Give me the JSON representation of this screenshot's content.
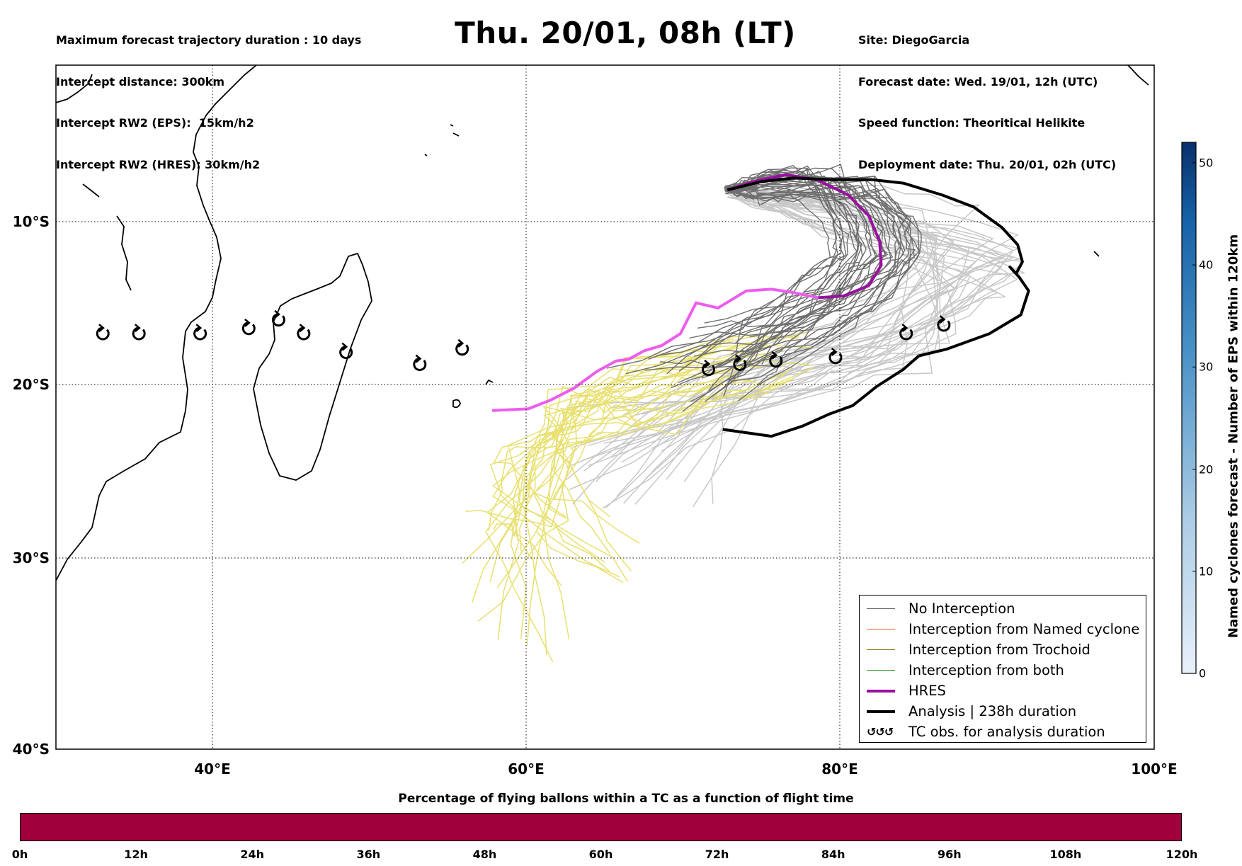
{
  "header": {
    "left_lines": [
      "Maximum forecast trajectory duration : 10 days",
      "Intercept distance: 300km",
      "Intercept RW2 (EPS):  15km/h2",
      "Intercept RW2 (HRES): 30km/h2"
    ],
    "title": "Thu. 20/01, 08h (LT)",
    "right_lines": [
      "Site: DiegoGarcia",
      "Forecast date: Wed. 19/01, 12h (UTC)",
      "Speed function: Theoritical Helikite",
      "Deployment date: Thu. 20/01, 02h (UTC)"
    ]
  },
  "map": {
    "lon_range": [
      30,
      100
    ],
    "lat_range": [
      0,
      -40
    ],
    "lat_labels": [
      "10°S",
      "20°S",
      "30°S",
      "40°S"
    ],
    "lon_labels": [
      "40°E",
      "60°E",
      "80°E",
      "100°E"
    ],
    "gridlines": true,
    "colors": {
      "no_interception": "#6e6e6e",
      "light_member": "#c8c8c8",
      "yellow_member": "#e8e070",
      "hres_forecast": "#9a0fa0",
      "hres_analysis_segment": "#ee5cee",
      "analysis": "#000000"
    },
    "tc_obs_points": [
      {
        "lon": 33,
        "lat": -15.7
      },
      {
        "lon": 35.3,
        "lat": -15.7
      },
      {
        "lon": 39.2,
        "lat": -15.7
      },
      {
        "lon": 42.3,
        "lat": -15.4
      },
      {
        "lon": 44.2,
        "lat": -14.9
      },
      {
        "lon": 45.8,
        "lat": -15.7
      },
      {
        "lon": 48.5,
        "lat": -16.8
      },
      {
        "lon": 53.2,
        "lat": -17.5
      },
      {
        "lon": 55.9,
        "lat": -16.6
      },
      {
        "lon": 71.6,
        "lat": -17.8
      },
      {
        "lon": 73.6,
        "lat": -17.5
      },
      {
        "lon": 75.9,
        "lat": -17.3
      },
      {
        "lon": 79.7,
        "lat": -17.1
      },
      {
        "lon": 84.2,
        "lat": -15.7
      },
      {
        "lon": 86.6,
        "lat": -15.2
      }
    ],
    "analysis_track": [
      [
        72.8,
        -7.3
      ],
      [
        75,
        -6.8
      ],
      [
        77,
        -6.6
      ],
      [
        79.5,
        -6.7
      ],
      [
        82,
        -6.7
      ],
      [
        84,
        -6.9
      ],
      [
        86.5,
        -7.6
      ],
      [
        88.5,
        -8.3
      ],
      [
        90.3,
        -9.5
      ],
      [
        91.3,
        -10.5
      ],
      [
        91.6,
        -11.5
      ],
      [
        91.2,
        -12.2
      ],
      [
        90.8,
        -11.8
      ],
      [
        91.4,
        -12.4
      ],
      [
        92,
        -13.2
      ],
      [
        91.5,
        -14.6
      ],
      [
        89.5,
        -15.7
      ],
      [
        86.8,
        -16.6
      ],
      [
        85,
        -17
      ],
      [
        84,
        -17.8
      ],
      [
        82.3,
        -18.8
      ],
      [
        80.8,
        -19.9
      ],
      [
        79.3,
        -20.4
      ],
      [
        77.6,
        -21.1
      ],
      [
        75.6,
        -21.7
      ],
      [
        72.5,
        -21.3
      ]
    ],
    "hres_track": [
      [
        72.8,
        -7.3
      ],
      [
        74.5,
        -6.8
      ],
      [
        76.5,
        -6.4
      ],
      [
        78.5,
        -6.7
      ],
      [
        80.5,
        -7.6
      ],
      [
        81.8,
        -8.8
      ],
      [
        82.5,
        -10.3
      ],
      [
        82.6,
        -11.7
      ],
      [
        81.8,
        -12.9
      ],
      [
        80.2,
        -13.5
      ],
      [
        78.6,
        -13.6
      ],
      [
        77,
        -13.3
      ],
      [
        75.6,
        -13.1
      ],
      [
        74,
        -13.2
      ],
      [
        72.2,
        -14.2
      ],
      [
        70.8,
        -13.9
      ],
      [
        69.8,
        -15.7
      ],
      [
        68.6,
        -16.4
      ],
      [
        67.5,
        -16.7
      ],
      [
        66.5,
        -17.2
      ],
      [
        65.7,
        -17.3
      ],
      [
        64.5,
        -17.9
      ],
      [
        63,
        -18.9
      ],
      [
        61.5,
        -19.6
      ],
      [
        60.1,
        -20.1
      ],
      [
        57.8,
        -20.2
      ]
    ]
  },
  "legend": {
    "items": [
      {
        "label": "No Interception",
        "color": "#6e6e6e",
        "width": 1.3
      },
      {
        "label": "Interception from Named cyclone",
        "color": "#e45a2b",
        "width": 1.3
      },
      {
        "label": "Interception from Trochoid",
        "color": "#8a7a1a",
        "width": 1.3
      },
      {
        "label": "Interception from both",
        "color": "#1a8a1a",
        "width": 1.3
      },
      {
        "label": "HRES",
        "color": "#9a0fa0",
        "width": 4
      },
      {
        "label": "Analysis | 238h duration",
        "color": "#000000",
        "width": 4
      }
    ],
    "tc_glyphs": "↺↺↺",
    "tc_label": "TC obs. for analysis duration"
  },
  "colorbar_vertical": {
    "title": "Named cyclones forecast - Number of EPS within 120km",
    "ticks": [
      "0",
      "10",
      "20",
      "30",
      "40",
      "50"
    ],
    "range": [
      0,
      52
    ]
  },
  "colorbar_horizontal": {
    "title": "Percentage of flying ballons within a TC as a function of flight time",
    "ticks": [
      "0h",
      "12h",
      "24h",
      "36h",
      "48h",
      "60h",
      "72h",
      "84h",
      "96h",
      "108h",
      "120h"
    ],
    "color": "#a0003c"
  }
}
